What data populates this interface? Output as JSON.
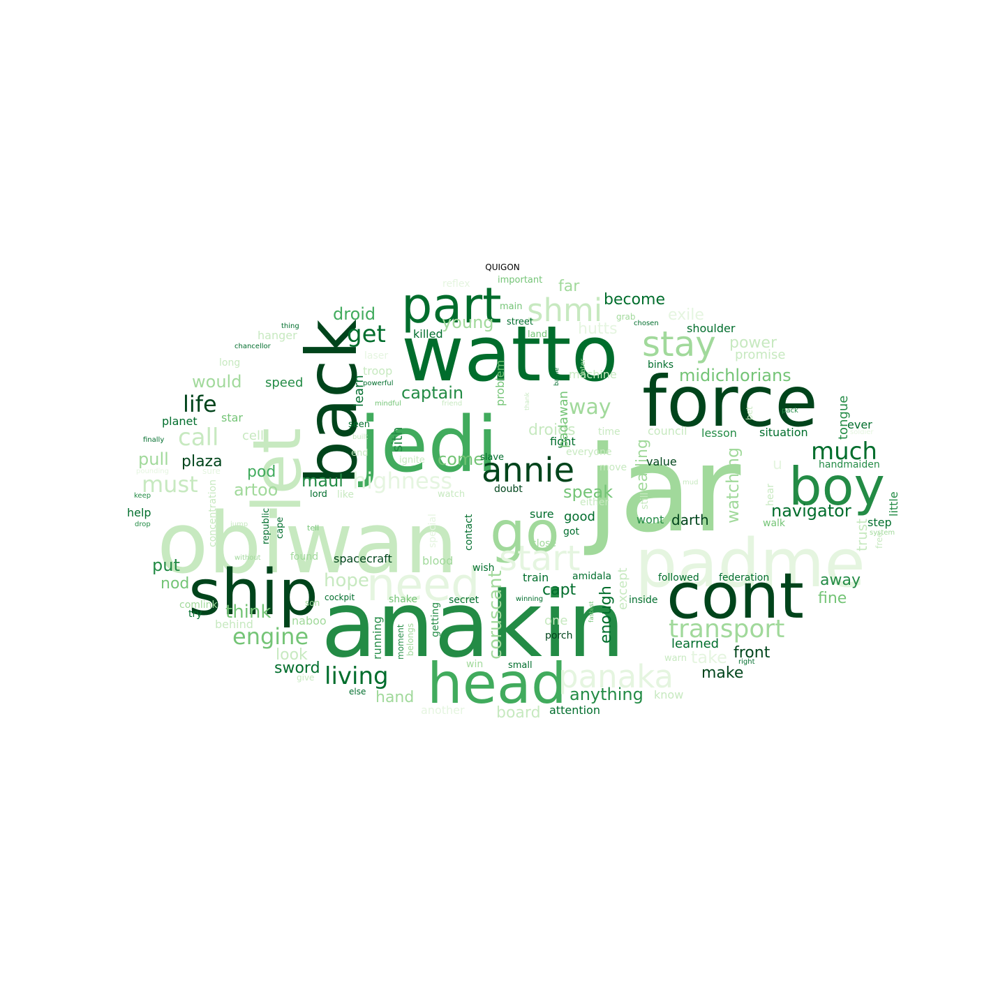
{
  "title": "QUIGON",
  "palette": [
    "#00441b",
    "#006d2c",
    "#238b45",
    "#41ab5d",
    "#74c476",
    "#a1d99b",
    "#c7e9c0",
    "#e5f5e0"
  ],
  "words": [
    {
      "text": "jar",
      "color": 5
    },
    {
      "text": "anakin",
      "color": 2
    },
    {
      "text": "obiwan",
      "color": 6
    },
    {
      "text": "padme",
      "color": 7
    },
    {
      "text": "watto",
      "color": 1
    },
    {
      "text": "jedi",
      "color": 3
    },
    {
      "text": "force",
      "color": 0
    },
    {
      "text": "back",
      "color": 0
    },
    {
      "text": "let",
      "color": 6
    },
    {
      "text": "ship",
      "color": 0
    },
    {
      "text": "cont",
      "color": 0
    },
    {
      "text": "head",
      "color": 3
    },
    {
      "text": "go",
      "color": 5
    },
    {
      "text": "need",
      "color": 7
    },
    {
      "text": "part",
      "color": 1
    },
    {
      "text": "boy",
      "color": 2
    },
    {
      "text": "shmi",
      "color": 6
    },
    {
      "text": "stay",
      "color": 5
    },
    {
      "text": "annie",
      "color": 0
    },
    {
      "text": "start",
      "color": 7
    },
    {
      "text": "panaka",
      "color": 7
    },
    {
      "text": "transport",
      "color": 5
    },
    {
      "text": "highness",
      "color": 7
    },
    {
      "text": "much",
      "color": 1
    },
    {
      "text": "living",
      "color": 1
    },
    {
      "text": "engine",
      "color": 4
    },
    {
      "text": "call",
      "color": 6
    },
    {
      "text": "must",
      "color": 6
    },
    {
      "text": "life",
      "color": 0
    },
    {
      "text": "way",
      "color": 5
    },
    {
      "text": "midichlorians",
      "color": 4
    },
    {
      "text": "navigator",
      "color": 1
    },
    {
      "text": "get",
      "color": 1
    },
    {
      "text": "droid",
      "color": 3
    },
    {
      "text": "captain",
      "color": 2
    },
    {
      "text": "young",
      "color": 5
    },
    {
      "text": "watching",
      "color": 5
    },
    {
      "text": "coruscant",
      "color": 5
    },
    {
      "text": "think",
      "color": 4
    },
    {
      "text": "anything",
      "color": 2
    },
    {
      "text": "hope",
      "color": 6
    },
    {
      "text": "become",
      "color": 1
    },
    {
      "text": "would",
      "color": 5
    },
    {
      "text": "pull",
      "color": 5
    },
    {
      "text": "plaza",
      "color": 0
    },
    {
      "text": "pod",
      "color": 3
    },
    {
      "text": "artoo",
      "color": 5
    },
    {
      "text": "maul",
      "color": 2
    },
    {
      "text": "come",
      "color": 4
    },
    {
      "text": "speak",
      "color": 4
    },
    {
      "text": "sword",
      "color": 1
    },
    {
      "text": "front",
      "color": 0
    },
    {
      "text": "make",
      "color": 0
    },
    {
      "text": "take",
      "color": 7
    },
    {
      "text": "fine",
      "color": 4
    },
    {
      "text": "away",
      "color": 2
    },
    {
      "text": "enough",
      "color": 1
    },
    {
      "text": "darth",
      "color": 0
    },
    {
      "text": "capt",
      "color": 1
    },
    {
      "text": "heading",
      "color": 5
    },
    {
      "text": "put",
      "color": 2
    },
    {
      "text": "nod",
      "color": 4
    },
    {
      "text": "board",
      "color": 6
    },
    {
      "text": "hand",
      "color": 5
    },
    {
      "text": "look",
      "color": 6
    },
    {
      "text": "spacecraft",
      "color": 0
    },
    {
      "text": "power",
      "color": 6
    },
    {
      "text": "shoulder",
      "color": 1
    },
    {
      "text": "far",
      "color": 5
    },
    {
      "text": "hutts",
      "color": 7
    },
    {
      "text": "exile",
      "color": 7
    },
    {
      "text": "droids",
      "color": 6
    },
    {
      "text": "fight",
      "color": 1
    },
    {
      "text": "lesson",
      "color": 2
    },
    {
      "text": "situation",
      "color": 1
    },
    {
      "text": "tongue",
      "color": 2
    },
    {
      "text": "trust",
      "color": 6
    },
    {
      "text": "good",
      "color": 1
    },
    {
      "text": "value",
      "color": 0
    },
    {
      "text": "wont",
      "color": 2
    },
    {
      "text": "handmaiden",
      "color": 2
    },
    {
      "text": "little",
      "color": 2
    },
    {
      "text": "step",
      "color": 1
    },
    {
      "text": "learned",
      "color": 1
    },
    {
      "text": "federation",
      "color": 1
    },
    {
      "text": "followed",
      "color": 1
    },
    {
      "text": "inside",
      "color": 1
    },
    {
      "text": "sith",
      "color": 2
    },
    {
      "text": "learn",
      "color": 1
    },
    {
      "text": "killed",
      "color": 1
    },
    {
      "text": "speed",
      "color": 2
    },
    {
      "text": "star",
      "color": 4
    },
    {
      "text": "planet",
      "color": 1
    },
    {
      "text": "help",
      "color": 1
    },
    {
      "text": "padawan",
      "color": 4
    },
    {
      "text": "problem",
      "color": 4
    },
    {
      "text": "machine",
      "color": 6
    },
    {
      "text": "council",
      "color": 6
    },
    {
      "text": "promise",
      "color": 6
    },
    {
      "text": "binks",
      "color": 1
    },
    {
      "text": "ever",
      "color": 1
    },
    {
      "text": "except",
      "color": 6
    },
    {
      "text": "contact",
      "color": 1
    },
    {
      "text": "blood",
      "color": 5
    },
    {
      "text": "wish",
      "color": 1
    },
    {
      "text": "train",
      "color": 1
    },
    {
      "text": "amidala",
      "color": 1
    },
    {
      "text": "secret",
      "color": 1
    },
    {
      "text": "shake",
      "color": 4
    },
    {
      "text": "cockpit",
      "color": 1
    },
    {
      "text": "running",
      "color": 2
    },
    {
      "text": "getting",
      "color": 2
    },
    {
      "text": "moment",
      "color": 2
    },
    {
      "text": "belongs",
      "color": 5
    },
    {
      "text": "porch",
      "color": 0
    },
    {
      "text": "small",
      "color": 1
    },
    {
      "text": "win",
      "color": 5
    },
    {
      "text": "else",
      "color": 1
    },
    {
      "text": "naboo",
      "color": 5
    },
    {
      "text": "behind",
      "color": 6
    },
    {
      "text": "comlink",
      "color": 5
    },
    {
      "text": "try",
      "color": 1
    },
    {
      "text": "found",
      "color": 5
    },
    {
      "text": "son",
      "color": 5
    },
    {
      "text": "give",
      "color": 6
    },
    {
      "text": "another",
      "color": 7
    },
    {
      "text": "attention",
      "color": 1
    },
    {
      "text": "know",
      "color": 6
    },
    {
      "text": "warn",
      "color": 6
    },
    {
      "text": "one",
      "color": 6
    },
    {
      "text": "sure",
      "color": 1
    },
    {
      "text": "got",
      "color": 1
    },
    {
      "text": "close",
      "color": 5
    },
    {
      "text": "walk",
      "color": 4
    },
    {
      "text": "either",
      "color": 6
    },
    {
      "text": "still",
      "color": 6
    },
    {
      "text": "hear",
      "color": 6
    },
    {
      "text": "doubt",
      "color": 0
    },
    {
      "text": "like",
      "color": 6
    },
    {
      "text": "lord",
      "color": 1
    },
    {
      "text": "watch",
      "color": 6
    },
    {
      "text": "special",
      "color": 7
    },
    {
      "text": "republic",
      "color": 1
    },
    {
      "text": "cape",
      "color": 1
    },
    {
      "text": "tell",
      "color": 4
    },
    {
      "text": "concentration",
      "color": 6
    },
    {
      "text": "seen",
      "color": 1
    },
    {
      "text": "end",
      "color": 6
    },
    {
      "text": "ignite",
      "color": 6
    },
    {
      "text": "slave",
      "color": 1
    },
    {
      "text": "cell",
      "color": 6
    },
    {
      "text": "long",
      "color": 6
    },
    {
      "text": "hanger",
      "color": 6
    },
    {
      "text": "troop",
      "color": 6
    },
    {
      "text": "laser",
      "color": 7
    },
    {
      "text": "street",
      "color": 1
    },
    {
      "text": "land",
      "color": 4
    },
    {
      "text": "grab",
      "color": 5
    },
    {
      "text": "chosen",
      "color": 1
    },
    {
      "text": "main",
      "color": 4
    },
    {
      "text": "important",
      "color": 4
    },
    {
      "text": "reflex",
      "color": 7
    },
    {
      "text": "thing",
      "color": 1
    },
    {
      "text": "chancellor",
      "color": 1
    },
    {
      "text": "finally",
      "color": 1
    },
    {
      "text": "keep",
      "color": 2
    },
    {
      "text": "drop",
      "color": 2
    },
    {
      "text": "powerful",
      "color": 1
    },
    {
      "text": "mindful",
      "color": 4
    },
    {
      "text": "friend",
      "color": 6
    },
    {
      "text": "thank",
      "color": 6
    },
    {
      "text": "battle",
      "color": 1
    },
    {
      "text": "later",
      "color": 5
    },
    {
      "text": "pack",
      "color": 2
    },
    {
      "text": "bet",
      "color": 6
    },
    {
      "text": "time",
      "color": 6
    },
    {
      "text": "everyone",
      "color": 6
    },
    {
      "text": "move",
      "color": 6
    },
    {
      "text": "soldier",
      "color": 7
    },
    {
      "text": "free",
      "color": 6
    },
    {
      "text": "system",
      "color": 5
    },
    {
      "text": "winning",
      "color": 1
    },
    {
      "text": "fastest",
      "color": 4
    },
    {
      "text": "right",
      "color": 1
    },
    {
      "text": "without",
      "color": 5
    },
    {
      "text": "jump",
      "color": 6
    },
    {
      "text": "built",
      "color": 6
    },
    {
      "text": "u",
      "color": 7
    },
    {
      "text": "mud",
      "color": 6
    },
    {
      "text": "sure",
      "color": 7
    },
    {
      "text": "pounding",
      "color": 7
    }
  ]
}
